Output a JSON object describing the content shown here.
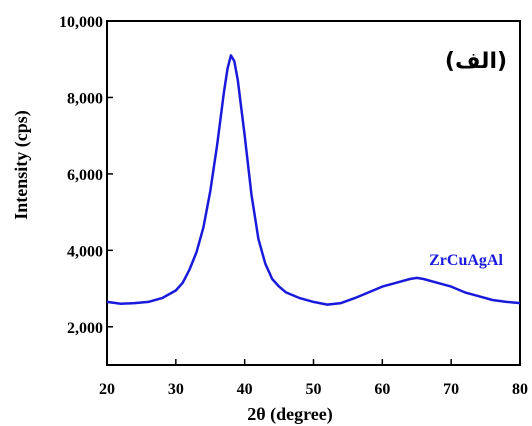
{
  "chart_data": {
    "type": "line",
    "xlabel": "2θ (degree)",
    "ylabel": "Intensity (cps)",
    "xlim": [
      20,
      80
    ],
    "ylim": [
      1000,
      10000
    ],
    "x_ticks": [
      20,
      30,
      40,
      50,
      60,
      70,
      80
    ],
    "y_ticks": [
      2000,
      4000,
      6000,
      8000,
      10000
    ],
    "x_tick_labels": [
      "20",
      "30",
      "40",
      "50",
      "60",
      "70",
      "80"
    ],
    "y_tick_labels": [
      "2,000",
      "4,000",
      "6,000",
      "8,000",
      "10,000"
    ],
    "grid": false,
    "panel_label": "(الف)",
    "series": [
      {
        "name": "ZrCuAgAl",
        "color": "#1a1adb",
        "x": [
          20,
          22,
          24,
          26,
          28,
          30,
          31,
          32,
          33,
          34,
          35,
          36,
          37,
          37.5,
          38,
          38.5,
          39,
          40,
          41,
          42,
          43,
          44,
          45,
          46,
          48,
          50,
          52,
          54,
          56,
          58,
          60,
          62,
          64,
          65,
          66,
          68,
          70,
          72,
          74,
          76,
          78,
          80
        ],
        "y": [
          2650,
          2600,
          2620,
          2650,
          2750,
          2950,
          3150,
          3500,
          3950,
          4600,
          5550,
          6750,
          8150,
          8750,
          9100,
          8950,
          8450,
          7000,
          5450,
          4300,
          3650,
          3250,
          3050,
          2900,
          2750,
          2650,
          2580,
          2620,
          2750,
          2900,
          3050,
          3150,
          3250,
          3280,
          3250,
          3150,
          3050,
          2900,
          2800,
          2700,
          2650,
          2620
        ]
      }
    ]
  }
}
